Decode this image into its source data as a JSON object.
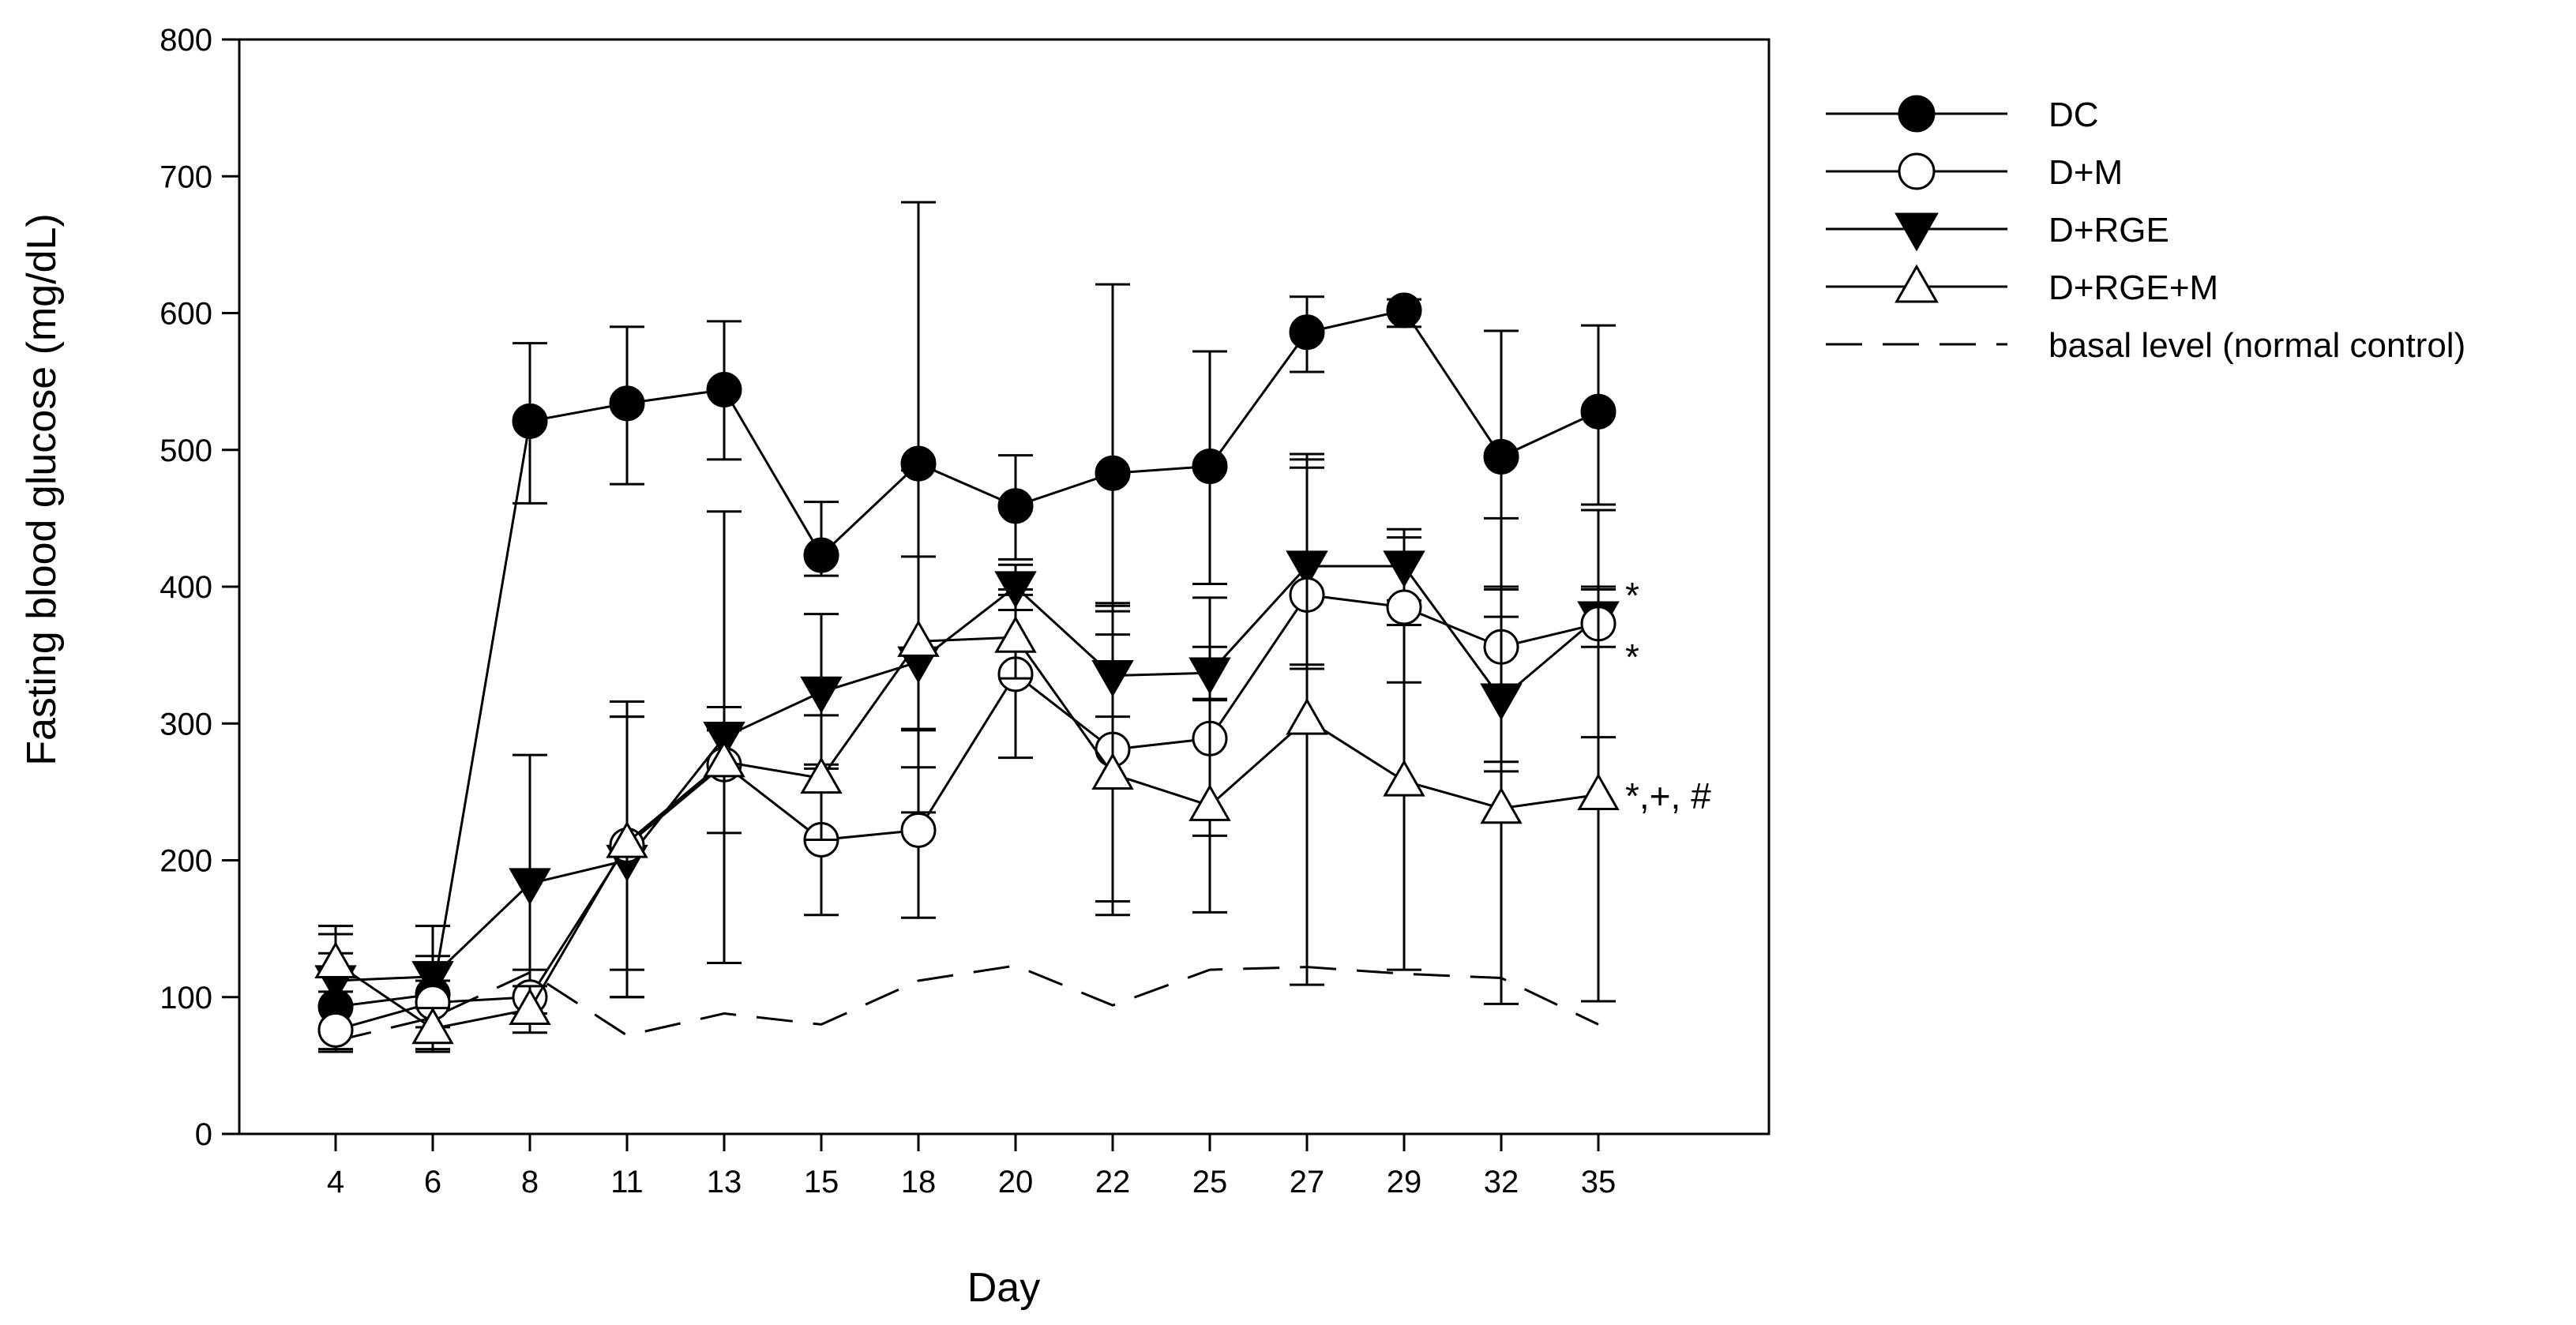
{
  "chart_data": {
    "type": "line",
    "title": "",
    "xlabel": "Day",
    "ylabel": "Fasting blood glucose (mg/dL)",
    "categories": [
      "4",
      "6",
      "8",
      "11",
      "13",
      "15",
      "18",
      "20",
      "22",
      "25",
      "27",
      "29",
      "32",
      "35"
    ],
    "yticks": [
      "0",
      "100",
      "200",
      "300",
      "400",
      "500",
      "600",
      "700",
      "800"
    ],
    "ylim": [
      0,
      800
    ],
    "grid": false,
    "legend": "right",
    "series": [
      {
        "name": "DC",
        "marker": "filled-circle",
        "values": [
          93,
          102,
          521,
          534,
          544,
          423,
          490,
          459,
          483,
          488,
          586,
          602,
          495,
          528
        ],
        "err_upper": [
          152,
          152,
          578,
          590,
          594,
          462,
          681,
          496,
          621,
          572,
          612,
          610,
          587,
          591
        ],
        "err_lower": [
          60,
          60,
          461,
          475,
          493,
          408,
          295,
          420,
          386,
          402,
          557,
          590,
          400,
          460
        ]
      },
      {
        "name": "D+M",
        "marker": "open-circle",
        "values": [
          76,
          96,
          100,
          211,
          270,
          215,
          222,
          336,
          281,
          289,
          394,
          385,
          356,
          373
        ],
        "err_upper": [
          95,
          112,
          120,
          316,
          455,
          270,
          296,
          398,
          388,
          392,
          493,
          442,
          450,
          456
        ],
        "err_lower": [
          62,
          78,
          83,
          100,
          125,
          160,
          158,
          275,
          170,
          218,
          340,
          330,
          265,
          290
        ]
      },
      {
        "name": "D+RGE",
        "marker": "filled-triangle-down",
        "values": [
          112,
          115,
          183,
          200,
          290,
          323,
          345,
          400,
          335,
          337,
          415,
          415,
          318,
          378
        ],
        "err_upper": [
          132,
          130,
          277,
          305,
          312,
          380,
          422,
          416,
          365,
          356,
          487,
          436,
          398,
          398
        ],
        "err_lower": [
          92,
          98,
          88,
          100,
          270,
          267,
          268,
          383,
          305,
          318,
          343,
          390,
          272,
          356
        ]
      },
      {
        "name": "D+RGE+M",
        "marker": "open-triangle-up",
        "values": [
          125,
          77,
          91,
          213,
          272,
          260,
          360,
          363,
          263,
          240,
          303,
          258,
          238,
          248
        ],
        "err_upper": [
          146,
          92,
          108,
          305,
          295,
          306,
          485,
          394,
          382,
          317,
          497,
          372,
          378,
          400
        ],
        "err_lower": [
          104,
          62,
          74,
          120,
          220,
          215,
          235,
          333,
          160,
          162,
          109,
          120,
          95,
          97
        ]
      },
      {
        "name": "basal level (normal control)",
        "marker": "none",
        "line": "dashed",
        "values": [
          68,
          85,
          118,
          72,
          88,
          80,
          112,
          123,
          94,
          120,
          122,
          117,
          114,
          80
        ]
      }
    ],
    "annotations": [
      {
        "text": "*",
        "series": "D+RGE"
      },
      {
        "text": "*",
        "series": "D+M"
      },
      {
        "text": "*,+, #",
        "series": "D+RGE+M"
      }
    ]
  }
}
